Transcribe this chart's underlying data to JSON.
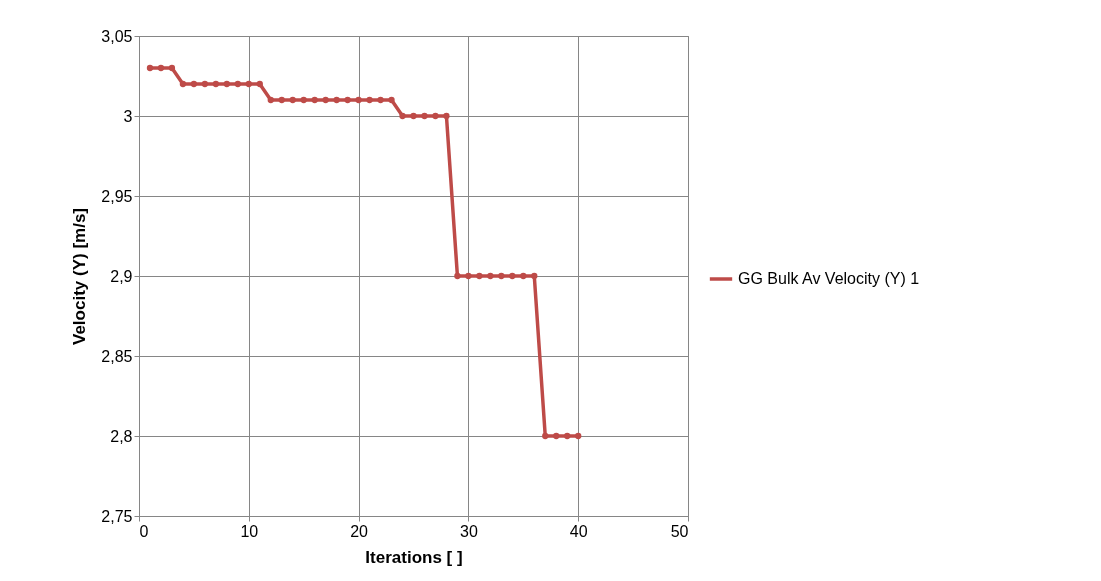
{
  "chart_data": {
    "type": "line",
    "xlabel": "Iterations [ ]",
    "ylabel": "Velocity (Y) [m/s]",
    "x": [
      1,
      2,
      3,
      4,
      5,
      6,
      7,
      8,
      9,
      10,
      11,
      12,
      13,
      14,
      15,
      16,
      17,
      18,
      19,
      20,
      21,
      22,
      23,
      24,
      25,
      26,
      27,
      28,
      29,
      30,
      31,
      32,
      33,
      34,
      35,
      36,
      37,
      38,
      39,
      40
    ],
    "series": [
      {
        "name": "GG Bulk Av Velocity (Y) 1",
        "color": "#be4b48",
        "values": [
          3.03,
          3.03,
          3.03,
          3.02,
          3.02,
          3.02,
          3.02,
          3.02,
          3.02,
          3.02,
          3.02,
          3.01,
          3.01,
          3.01,
          3.01,
          3.01,
          3.01,
          3.01,
          3.01,
          3.01,
          3.01,
          3.01,
          3.01,
          3.0,
          3.0,
          3.0,
          3.0,
          3.0,
          2.9,
          2.9,
          2.9,
          2.9,
          2.9,
          2.9,
          2.9,
          2.9,
          2.8,
          2.8,
          2.8,
          2.8
        ]
      }
    ],
    "xlim": [
      0,
      50
    ],
    "xticks": [
      0,
      10,
      20,
      30,
      40,
      50
    ],
    "ylim": [
      2.75,
      3.05
    ],
    "yticks": [
      {
        "value": 2.75,
        "label": "2,75"
      },
      {
        "value": 2.8,
        "label": "2,8"
      },
      {
        "value": 2.85,
        "label": "2,85"
      },
      {
        "value": 2.9,
        "label": "2,9"
      },
      {
        "value": 2.95,
        "label": "2,95"
      },
      3,
      {
        "value": 3.05,
        "label": "3,05"
      }
    ],
    "grid": true,
    "legend": "right",
    "marker": "circle",
    "line_style": "solid"
  }
}
